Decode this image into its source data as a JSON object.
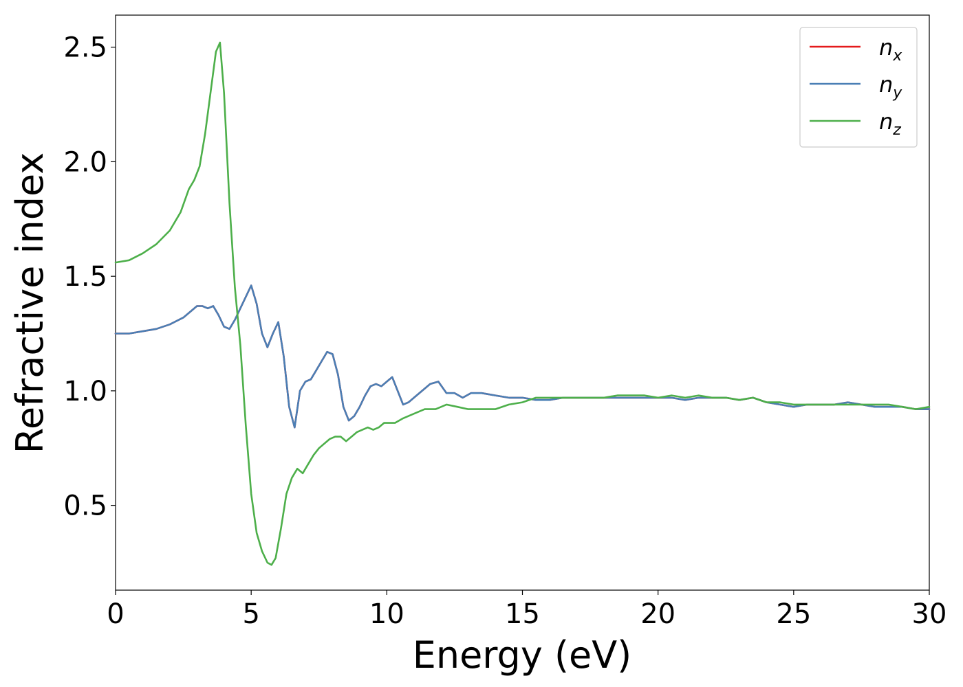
{
  "chart_data": {
    "type": "line",
    "xlabel": "Energy (eV)",
    "ylabel": "Refractive index",
    "xlim": [
      0,
      30
    ],
    "ylim": [
      0.13,
      2.64
    ],
    "xticks": [
      0,
      5,
      10,
      15,
      20,
      25,
      30
    ],
    "xtick_labels": [
      "0",
      "5",
      "10",
      "15",
      "20",
      "25",
      "30"
    ],
    "yticks": [
      0.5,
      1.0,
      1.5,
      2.0,
      2.5
    ],
    "ytick_labels": [
      "0.5",
      "1.0",
      "1.5",
      "2.0",
      "2.5"
    ],
    "grid": false,
    "legend_position": "top-right",
    "series": [
      {
        "name": "n_x",
        "label_base": "n",
        "label_sub": "x",
        "color": "#e41a1c",
        "x": [
          0,
          0.5,
          1,
          1.5,
          2,
          2.5,
          2.8,
          3.0,
          3.2,
          3.4,
          3.6,
          3.8,
          4.0,
          4.2,
          4.4,
          4.6,
          4.8,
          5.0,
          5.2,
          5.4,
          5.6,
          5.8,
          6.0,
          6.2,
          6.4,
          6.6,
          6.8,
          7.0,
          7.2,
          7.4,
          7.6,
          7.8,
          8.0,
          8.2,
          8.4,
          8.6,
          8.8,
          9.0,
          9.2,
          9.4,
          9.6,
          9.8,
          10.0,
          10.2,
          10.4,
          10.6,
          10.8,
          11.0,
          11.3,
          11.6,
          11.9,
          12.2,
          12.5,
          12.8,
          13.1,
          13.5,
          14.0,
          14.5,
          15.0,
          15.5,
          16.0,
          16.5,
          17.0,
          17.5,
          18.0,
          18.5,
          19.0,
          19.5,
          20.0,
          20.5,
          21.0,
          21.5,
          22.0,
          22.5,
          23.0,
          23.5,
          24.0,
          24.5,
          25.0,
          25.5,
          26.0,
          26.5,
          27.0,
          27.5,
          28.0,
          28.5,
          29.0,
          29.5,
          30.0
        ],
        "y": [
          1.25,
          1.25,
          1.26,
          1.27,
          1.29,
          1.32,
          1.35,
          1.37,
          1.37,
          1.36,
          1.37,
          1.33,
          1.28,
          1.27,
          1.31,
          1.36,
          1.41,
          1.46,
          1.38,
          1.25,
          1.19,
          1.25,
          1.3,
          1.15,
          0.93,
          0.84,
          1.0,
          1.04,
          1.05,
          1.09,
          1.13,
          1.17,
          1.16,
          1.07,
          0.93,
          0.87,
          0.89,
          0.93,
          0.98,
          1.02,
          1.03,
          1.02,
          1.04,
          1.06,
          1.0,
          0.94,
          0.95,
          0.97,
          1.0,
          1.03,
          1.04,
          0.99,
          0.99,
          0.97,
          0.99,
          0.99,
          0.98,
          0.97,
          0.97,
          0.96,
          0.96,
          0.97,
          0.97,
          0.97,
          0.97,
          0.97,
          0.97,
          0.97,
          0.97,
          0.97,
          0.96,
          0.97,
          0.97,
          0.97,
          0.96,
          0.97,
          0.95,
          0.94,
          0.93,
          0.94,
          0.94,
          0.94,
          0.95,
          0.94,
          0.93,
          0.93,
          0.93,
          0.92,
          0.92
        ]
      },
      {
        "name": "n_y",
        "label_base": "n",
        "label_sub": "y",
        "color": "#4a7fb5",
        "x": [
          0,
          0.5,
          1,
          1.5,
          2,
          2.5,
          2.8,
          3.0,
          3.2,
          3.4,
          3.6,
          3.8,
          4.0,
          4.2,
          4.4,
          4.6,
          4.8,
          5.0,
          5.2,
          5.4,
          5.6,
          5.8,
          6.0,
          6.2,
          6.4,
          6.6,
          6.8,
          7.0,
          7.2,
          7.4,
          7.6,
          7.8,
          8.0,
          8.2,
          8.4,
          8.6,
          8.8,
          9.0,
          9.2,
          9.4,
          9.6,
          9.8,
          10.0,
          10.2,
          10.4,
          10.6,
          10.8,
          11.0,
          11.3,
          11.6,
          11.9,
          12.2,
          12.5,
          12.8,
          13.1,
          13.5,
          14.0,
          14.5,
          15.0,
          15.5,
          16.0,
          16.5,
          17.0,
          17.5,
          18.0,
          18.5,
          19.0,
          19.5,
          20.0,
          20.5,
          21.0,
          21.5,
          22.0,
          22.5,
          23.0,
          23.5,
          24.0,
          24.5,
          25.0,
          25.5,
          26.0,
          26.5,
          27.0,
          27.5,
          28.0,
          28.5,
          29.0,
          29.5,
          30.0
        ],
        "y": [
          1.25,
          1.25,
          1.26,
          1.27,
          1.29,
          1.32,
          1.35,
          1.37,
          1.37,
          1.36,
          1.37,
          1.33,
          1.28,
          1.27,
          1.31,
          1.36,
          1.41,
          1.46,
          1.38,
          1.25,
          1.19,
          1.25,
          1.3,
          1.15,
          0.93,
          0.84,
          1.0,
          1.04,
          1.05,
          1.09,
          1.13,
          1.17,
          1.16,
          1.07,
          0.93,
          0.87,
          0.89,
          0.93,
          0.98,
          1.02,
          1.03,
          1.02,
          1.04,
          1.06,
          1.0,
          0.94,
          0.95,
          0.97,
          1.0,
          1.03,
          1.04,
          0.99,
          0.99,
          0.97,
          0.99,
          0.99,
          0.98,
          0.97,
          0.97,
          0.96,
          0.96,
          0.97,
          0.97,
          0.97,
          0.97,
          0.97,
          0.97,
          0.97,
          0.97,
          0.97,
          0.96,
          0.97,
          0.97,
          0.97,
          0.96,
          0.97,
          0.95,
          0.94,
          0.93,
          0.94,
          0.94,
          0.94,
          0.95,
          0.94,
          0.93,
          0.93,
          0.93,
          0.92,
          0.92
        ]
      },
      {
        "name": "n_z",
        "label_base": "n",
        "label_sub": "z",
        "color": "#4daf4a",
        "x": [
          0,
          0.5,
          1,
          1.5,
          2,
          2.4,
          2.7,
          2.9,
          3.1,
          3.3,
          3.5,
          3.7,
          3.85,
          4.0,
          4.2,
          4.4,
          4.6,
          4.8,
          5.0,
          5.2,
          5.4,
          5.6,
          5.75,
          5.9,
          6.1,
          6.3,
          6.5,
          6.7,
          6.9,
          7.1,
          7.3,
          7.5,
          7.7,
          7.9,
          8.1,
          8.3,
          8.5,
          8.7,
          8.9,
          9.1,
          9.3,
          9.5,
          9.7,
          9.9,
          10.1,
          10.3,
          10.6,
          11.0,
          11.4,
          11.8,
          12.2,
          12.6,
          13.0,
          13.5,
          14.0,
          14.5,
          15.0,
          15.5,
          16.0,
          16.5,
          17.0,
          17.5,
          18.0,
          18.5,
          19.0,
          19.5,
          20.0,
          20.5,
          21.0,
          21.5,
          22.0,
          22.5,
          23.0,
          23.5,
          24.0,
          24.5,
          25.0,
          25.5,
          26.0,
          26.5,
          27.0,
          27.5,
          28.0,
          28.5,
          29.0,
          29.5,
          30.0
        ],
        "y": [
          1.56,
          1.57,
          1.6,
          1.64,
          1.7,
          1.78,
          1.88,
          1.92,
          1.98,
          2.12,
          2.3,
          2.48,
          2.52,
          2.3,
          1.82,
          1.45,
          1.2,
          0.85,
          0.55,
          0.38,
          0.3,
          0.25,
          0.24,
          0.27,
          0.4,
          0.55,
          0.62,
          0.66,
          0.64,
          0.68,
          0.72,
          0.75,
          0.77,
          0.79,
          0.8,
          0.8,
          0.78,
          0.8,
          0.82,
          0.83,
          0.84,
          0.83,
          0.84,
          0.86,
          0.86,
          0.86,
          0.88,
          0.9,
          0.92,
          0.92,
          0.94,
          0.93,
          0.92,
          0.92,
          0.92,
          0.94,
          0.95,
          0.97,
          0.97,
          0.97,
          0.97,
          0.97,
          0.97,
          0.98,
          0.98,
          0.98,
          0.97,
          0.98,
          0.97,
          0.98,
          0.97,
          0.97,
          0.96,
          0.97,
          0.95,
          0.95,
          0.94,
          0.94,
          0.94,
          0.94,
          0.94,
          0.94,
          0.94,
          0.94,
          0.93,
          0.92,
          0.93
        ]
      }
    ]
  }
}
